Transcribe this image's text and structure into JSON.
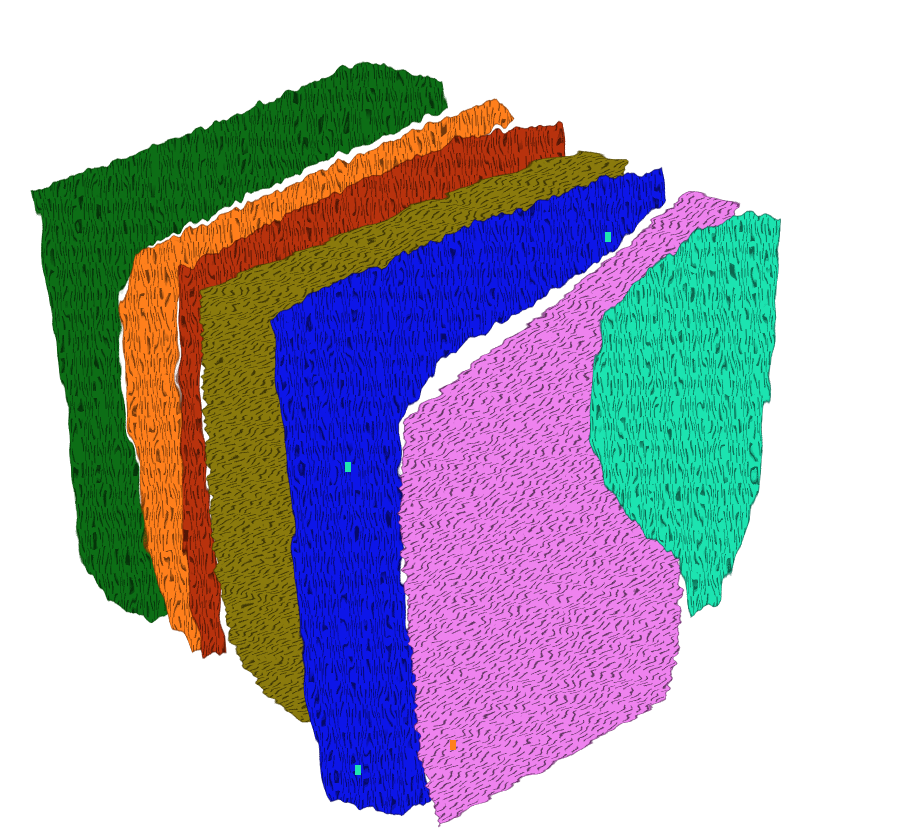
{
  "layers": [
    {
      "name": "layer-green",
      "color": "#0b6e12",
      "stripe": "#063b09"
    },
    {
      "name": "layer-orange",
      "color": "#ff7f1e",
      "stripe": "#7a3100"
    },
    {
      "name": "layer-rust",
      "color": "#b8320c",
      "stripe": "#4d1100"
    },
    {
      "name": "layer-olive",
      "color": "#8a7a0a",
      "stripe": "#3d3400"
    },
    {
      "name": "layer-blue",
      "color": "#0b12e8",
      "stripe": "#02045a"
    },
    {
      "name": "layer-pink",
      "color": "#ee82ee",
      "stripe": "#5a1f5a"
    },
    {
      "name": "layer-teal",
      "color": "#1fe3b0",
      "stripe": "#05543f"
    }
  ],
  "background": "#ffffff"
}
